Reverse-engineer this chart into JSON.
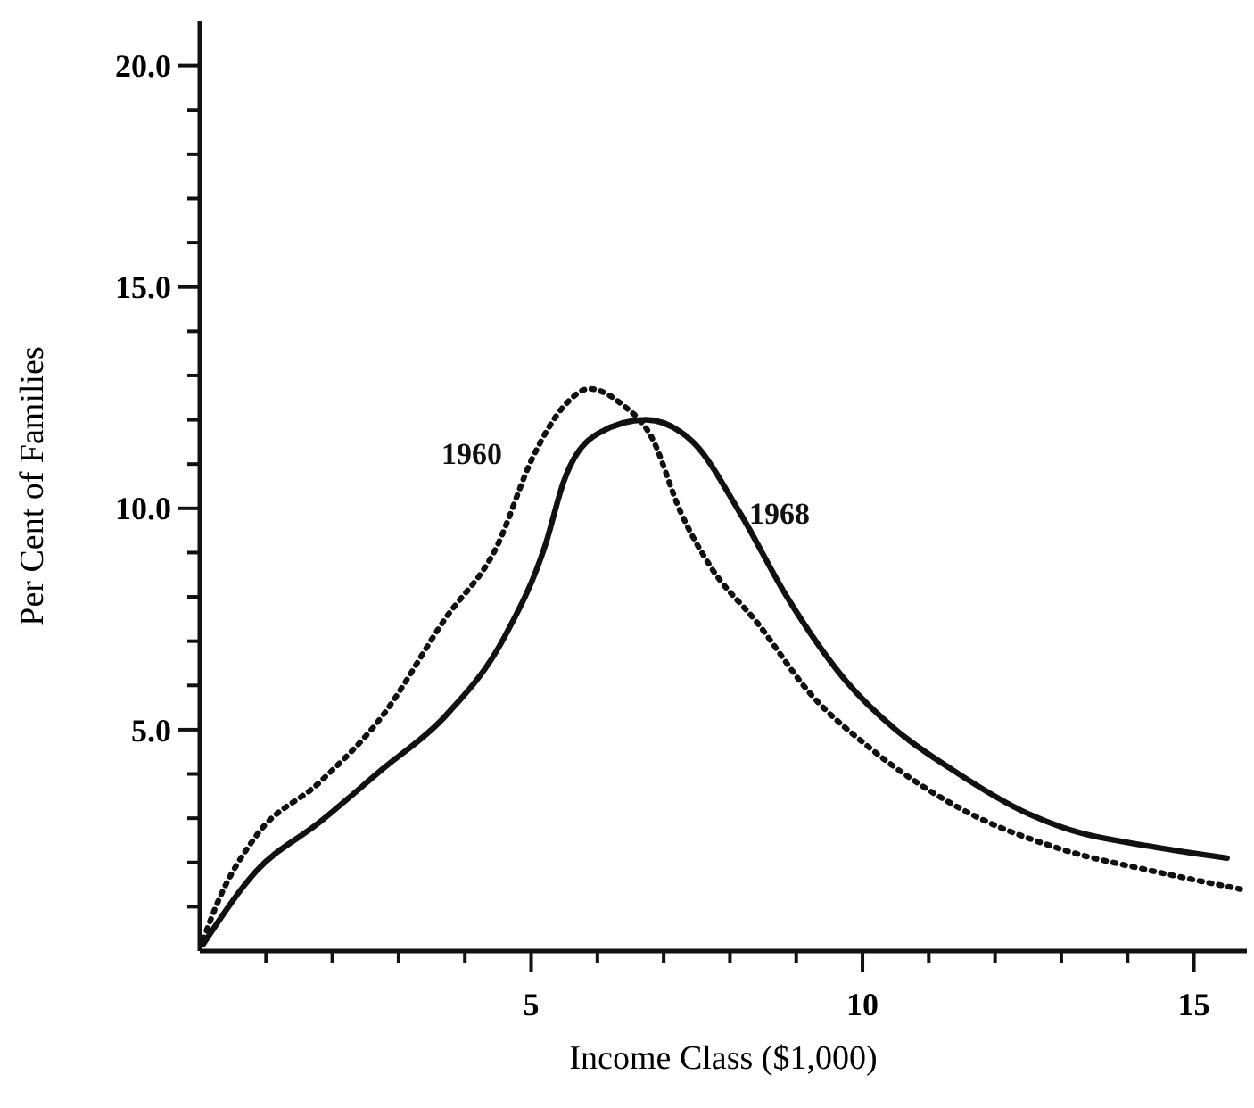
{
  "chart_data": {
    "type": "line",
    "xlabel": "Income Class ($1,000)",
    "ylabel": "Per Cent of Families",
    "xlim": [
      0,
      15.8
    ],
    "ylim": [
      0,
      21
    ],
    "xticks": [
      {
        "value": 1,
        "label": null
      },
      {
        "value": 2,
        "label": null
      },
      {
        "value": 3,
        "label": null
      },
      {
        "value": 4,
        "label": null
      },
      5,
      {
        "value": 6,
        "label": null
      },
      {
        "value": 7,
        "label": null
      },
      {
        "value": 8,
        "label": null
      },
      {
        "value": 9,
        "label": null
      },
      10,
      {
        "value": 11,
        "label": null
      },
      {
        "value": 12,
        "label": null
      },
      {
        "value": 13,
        "label": null
      },
      {
        "value": 14,
        "label": null
      },
      15
    ],
    "yticks": [
      {
        "value": 1,
        "label": null
      },
      {
        "value": 2,
        "label": null
      },
      {
        "value": 3,
        "label": null
      },
      {
        "value": 4,
        "label": null
      },
      {
        "value": 5,
        "label": "5.0"
      },
      {
        "value": 6,
        "label": null
      },
      {
        "value": 7,
        "label": null
      },
      {
        "value": 8,
        "label": null
      },
      {
        "value": 9,
        "label": null
      },
      {
        "value": 10,
        "label": "10.0"
      },
      {
        "value": 11,
        "label": null
      },
      {
        "value": 12,
        "label": null
      },
      {
        "value": 13,
        "label": null
      },
      {
        "value": 14,
        "label": null
      },
      {
        "value": 15,
        "label": "15.0"
      },
      {
        "value": 16,
        "label": null
      },
      {
        "value": 17,
        "label": null
      },
      {
        "value": 18,
        "label": null
      },
      {
        "value": 19,
        "label": null
      },
      {
        "value": 20,
        "label": "20.0"
      }
    ],
    "grid": false,
    "marker": "none",
    "series": [
      {
        "name": "1960",
        "color": "#111111",
        "line_style": "dotted",
        "x": [
          0.05,
          0.27,
          0.85,
          1.8,
          2.75,
          3.7,
          4.47,
          5.04,
          5.49,
          5.88,
          6.37,
          6.82,
          7.26,
          7.7,
          8.42,
          9.22,
          10.1,
          11.5,
          13.0,
          14.4,
          15.7
        ],
        "values": [
          0.25,
          1.1,
          2.6,
          3.8,
          5.3,
          7.5,
          9.1,
          11.2,
          12.3,
          12.7,
          12.35,
          11.6,
          9.9,
          8.7,
          7.4,
          5.8,
          4.6,
          3.2,
          2.3,
          1.8,
          1.4
        ]
      },
      {
        "name": "1968",
        "color": "#111111",
        "line_style": "solid",
        "x": [
          0.05,
          0.85,
          1.8,
          2.75,
          3.7,
          4.6,
          5.22,
          5.49,
          6.02,
          6.73,
          7.44,
          8.15,
          8.86,
          9.75,
          10.5,
          11.35,
          12.5,
          13.0,
          14.4,
          15.5
        ],
        "values": [
          0.15,
          1.8,
          2.9,
          4.1,
          5.3,
          7.1,
          9.2,
          10.6,
          11.7,
          12.0,
          11.5,
          9.9,
          8.0,
          6.1,
          5.0,
          4.1,
          3.1,
          2.8,
          2.35,
          2.1
        ]
      }
    ]
  }
}
